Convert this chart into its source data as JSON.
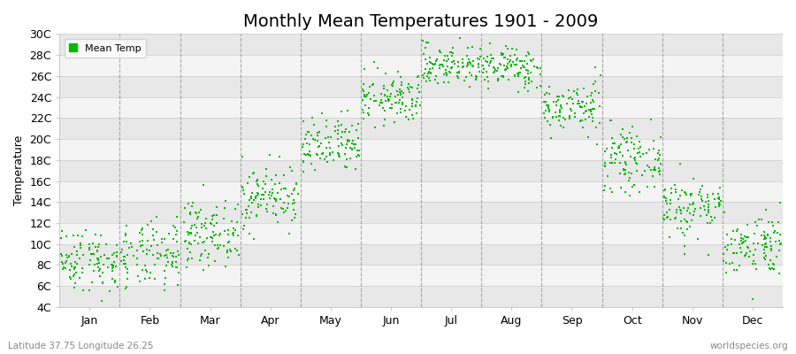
{
  "title": "Monthly Mean Temperatures 1901 - 2009",
  "ylabel": "Temperature",
  "xlabel_labels": [
    "Jan",
    "Feb",
    "Mar",
    "Apr",
    "May",
    "Jun",
    "Jul",
    "Aug",
    "Sep",
    "Oct",
    "Nov",
    "Dec"
  ],
  "ytick_labels": [
    "4C",
    "6C",
    "8C",
    "10C",
    "12C",
    "14C",
    "16C",
    "18C",
    "20C",
    "22C",
    "24C",
    "26C",
    "28C",
    "30C"
  ],
  "ytick_values": [
    4,
    6,
    8,
    10,
    12,
    14,
    16,
    18,
    20,
    22,
    24,
    26,
    28,
    30
  ],
  "ylim": [
    4,
    30
  ],
  "xlim": [
    0,
    12
  ],
  "legend_label": "Mean Temp",
  "dot_color": "#00bb00",
  "background_color": "#ffffff",
  "plot_bg_color": "#ffffff",
  "subtitle": "Latitude 37.75 Longitude 26.25",
  "watermark": "worldspecies.org",
  "title_fontsize": 14,
  "label_fontsize": 9,
  "monthly_means": [
    8.5,
    8.8,
    11.0,
    14.5,
    19.2,
    23.8,
    27.0,
    26.8,
    23.0,
    18.0,
    13.5,
    10.0
  ],
  "monthly_stds": [
    1.5,
    1.6,
    1.5,
    1.5,
    1.4,
    1.2,
    1.0,
    1.0,
    1.2,
    1.4,
    1.5,
    1.5
  ],
  "n_years": 109,
  "band_colors": [
    "#e8e8e8",
    "#f4f4f4"
  ]
}
